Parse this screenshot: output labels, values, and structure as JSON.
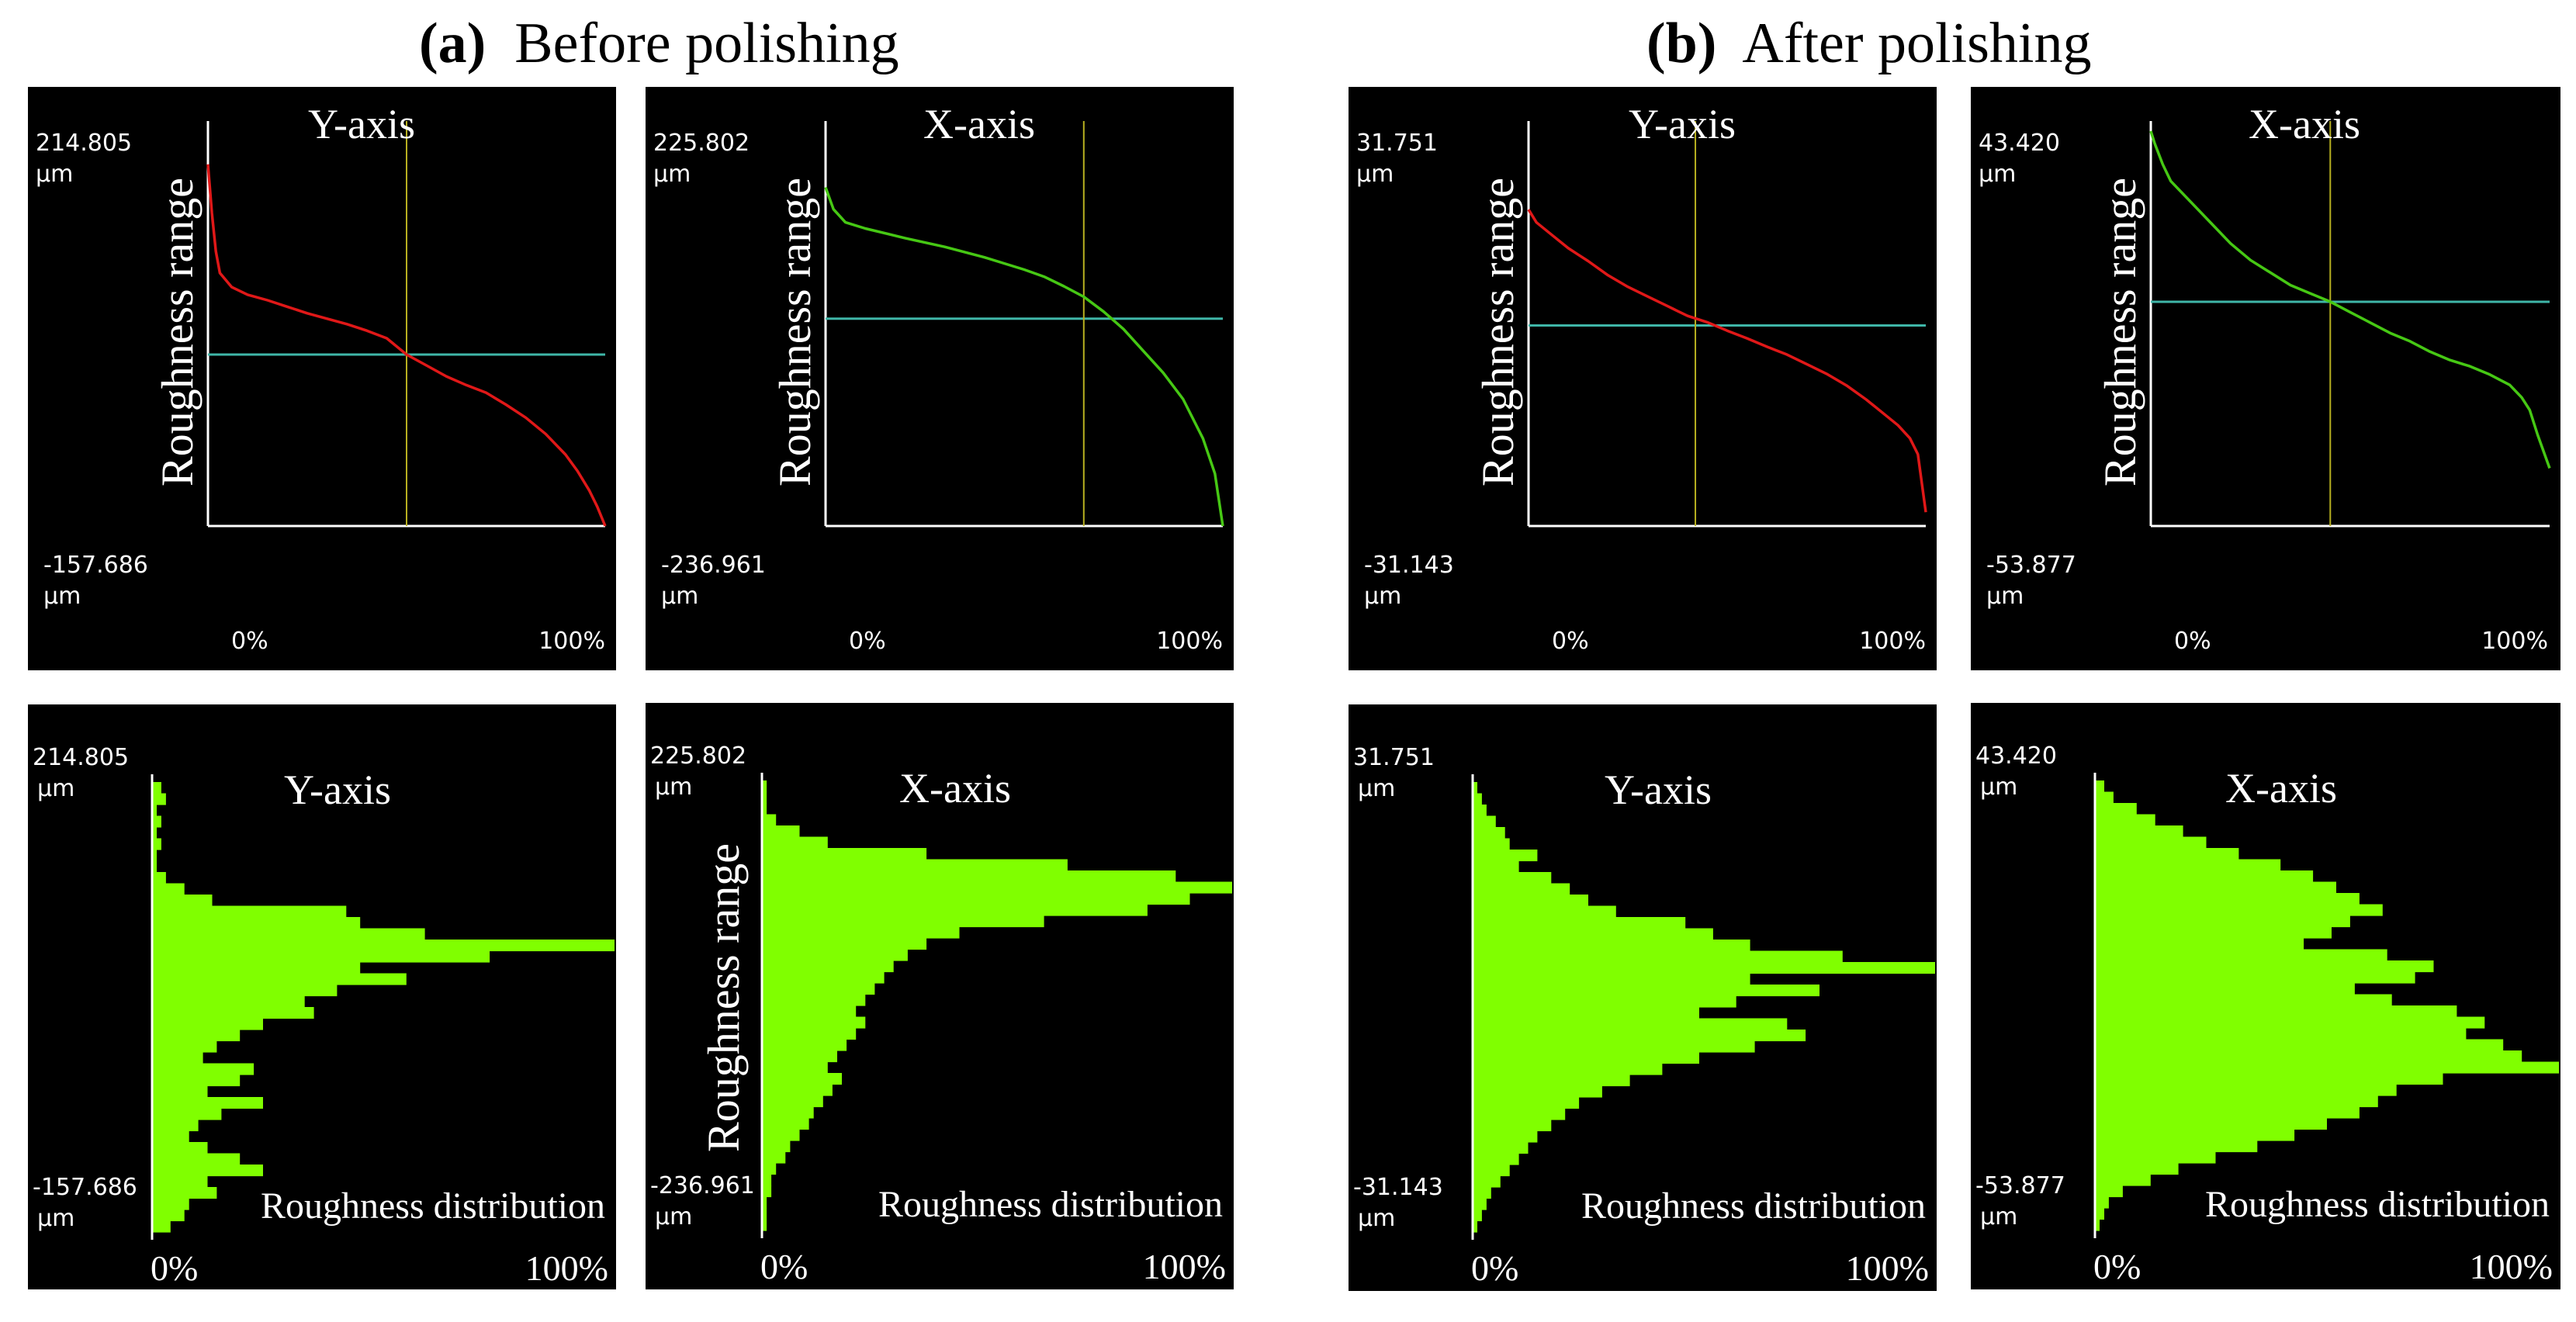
{
  "figure": {
    "section_a": {
      "letter": "(a)",
      "title": "Before polishing"
    },
    "section_b": {
      "letter": "(b)",
      "title": "After polishing"
    },
    "y_axis_label": "Roughness range",
    "x_tick_min": "0%",
    "x_tick_max": "100%",
    "distribution_label": "Roughness distribution",
    "unit": "μm"
  },
  "colors": {
    "background": "#000000",
    "y_curve": "#e01818",
    "x_curve": "#46c814",
    "histogram": "#80ff00",
    "cursor_vertical": "#b8b020",
    "cursor_horizontal": "#3fb6a8",
    "axis": "#ffffff",
    "label_text": "#ffffff"
  },
  "chart_data": [
    {
      "id": "a-y-curve",
      "type": "line",
      "title": "Y-axis",
      "axis_max": "214.805",
      "axis_min": "-157.686",
      "ylim": [
        -157.686,
        214.805
      ],
      "x": [
        0,
        1,
        2,
        3,
        6,
        10,
        15,
        20,
        25,
        30,
        35,
        40,
        45,
        50,
        55,
        60,
        65,
        70,
        75,
        80,
        85,
        90,
        93,
        96,
        98,
        100
      ],
      "y": [
        175,
        130,
        95,
        75,
        62,
        55,
        50,
        44,
        38,
        33,
        28,
        22,
        15,
        0,
        -10,
        -20,
        -28,
        -35,
        -46,
        -58,
        -73,
        -92,
        -107,
        -125,
        -140,
        -157.686
      ],
      "cursor_x": 50,
      "cursor_y": 0
    },
    {
      "id": "a-x-curve",
      "type": "line",
      "title": "X-axis",
      "axis_max": "225.802",
      "axis_min": "-236.961",
      "ylim": [
        -236.961,
        225.802
      ],
      "x": [
        0,
        2,
        5,
        10,
        20,
        30,
        40,
        50,
        55,
        60,
        65,
        70,
        75,
        80,
        85,
        90,
        95,
        98,
        100
      ],
      "y": [
        150,
        125,
        110,
        103,
        92,
        82,
        70,
        56,
        48,
        37,
        25,
        8,
        -12,
        -37,
        -62,
        -92,
        -137,
        -177,
        -236.961
      ],
      "cursor_x": 65,
      "cursor_y": 0
    },
    {
      "id": "b-y-curve",
      "type": "line",
      "title": "Y-axis",
      "axis_max": "31.751",
      "axis_min": "-31.143",
      "ylim": [
        -31.143,
        31.751
      ],
      "x": [
        0,
        2,
        5,
        10,
        15,
        20,
        25,
        30,
        35,
        40,
        45,
        50,
        55,
        60,
        65,
        70,
        75,
        80,
        85,
        90,
        93,
        96,
        98,
        100
      ],
      "y": [
        18,
        16,
        14.5,
        12,
        10,
        7.8,
        6,
        4.5,
        3,
        1.5,
        0.5,
        -0.8,
        -2,
        -3.3,
        -4.5,
        -6,
        -7.5,
        -9.3,
        -11.5,
        -14,
        -15.5,
        -17.5,
        -20,
        -29
      ],
      "cursor_x": 42,
      "cursor_y": 0
    },
    {
      "id": "b-x-curve",
      "type": "line",
      "title": "X-axis",
      "axis_max": "43.420",
      "axis_min": "-53.877",
      "ylim": [
        -53.877,
        43.42
      ],
      "x": [
        0,
        1,
        3,
        5,
        10,
        15,
        20,
        25,
        30,
        35,
        40,
        45,
        50,
        55,
        60,
        65,
        70,
        75,
        80,
        85,
        90,
        93,
        95,
        97,
        100
      ],
      "y": [
        41,
        38,
        33,
        29,
        24,
        19,
        14,
        10,
        7,
        4,
        2,
        0,
        -2.5,
        -5,
        -7.5,
        -9.5,
        -12,
        -14,
        -15.5,
        -17.5,
        -20,
        -23,
        -26,
        -32,
        -40
      ],
      "cursor_x": 45,
      "cursor_y": 0
    },
    {
      "id": "a-y-hist",
      "type": "bar",
      "orientation": "horizontal",
      "title": "Y-axis",
      "axis_max": "214.805",
      "axis_min": "-157.686",
      "ylim": [
        -157.686,
        214.805
      ],
      "bins": 40,
      "values": [
        2,
        3,
        1,
        2,
        1,
        2,
        1,
        1,
        3,
        7,
        13,
        42,
        45,
        59,
        100,
        73,
        45,
        55,
        40,
        33,
        35,
        24,
        19,
        14,
        11,
        22,
        19,
        12,
        24,
        15,
        10,
        8,
        12,
        19,
        24,
        12,
        14,
        8,
        7,
        4
      ],
      "xlim": [
        0,
        100
      ]
    },
    {
      "id": "a-x-hist",
      "type": "bar",
      "orientation": "horizontal",
      "title": "X-axis",
      "axis_max": "225.802",
      "axis_min": "-236.961",
      "ylim": [
        -236.961,
        225.802
      ],
      "bins": 40,
      "values": [
        1,
        1,
        1,
        3,
        8,
        14,
        35,
        65,
        88,
        100,
        91,
        82,
        60,
        42,
        35,
        31,
        28,
        26,
        24,
        22,
        20,
        22,
        20,
        18,
        16,
        14,
        17,
        15,
        13,
        11,
        10,
        8,
        6,
        5,
        3,
        2,
        2,
        1,
        1,
        1
      ],
      "xlim": [
        0,
        100
      ]
    },
    {
      "id": "b-y-hist",
      "type": "bar",
      "orientation": "horizontal",
      "title": "Y-axis",
      "axis_max": "31.751",
      "axis_min": "-31.143",
      "ylim": [
        -31.143,
        31.751
      ],
      "bins": 40,
      "values": [
        1,
        2,
        3,
        5,
        7,
        8,
        14,
        10,
        17,
        21,
        25,
        31,
        46,
        52,
        60,
        80,
        100,
        60,
        75,
        57,
        49,
        68,
        72,
        61,
        49,
        41,
        34,
        28,
        23,
        20,
        17,
        14,
        12,
        10,
        8,
        6,
        4,
        3,
        2,
        1
      ],
      "xlim": [
        0,
        100
      ]
    },
    {
      "id": "b-x-hist",
      "type": "bar",
      "orientation": "horizontal",
      "title": "X-axis",
      "axis_max": "43.420",
      "axis_min": "-53.877",
      "ylim": [
        -53.877,
        43.42
      ],
      "bins": 40,
      "values": [
        2,
        4,
        9,
        13,
        19,
        24,
        31,
        40,
        47,
        52,
        57,
        62,
        55,
        51,
        45,
        63,
        73,
        69,
        56,
        64,
        78,
        84,
        80,
        88,
        92,
        100,
        75,
        65,
        61,
        57,
        50,
        43,
        35,
        26,
        18,
        12,
        6,
        3,
        2,
        1
      ],
      "xlim": [
        0,
        100
      ]
    }
  ]
}
